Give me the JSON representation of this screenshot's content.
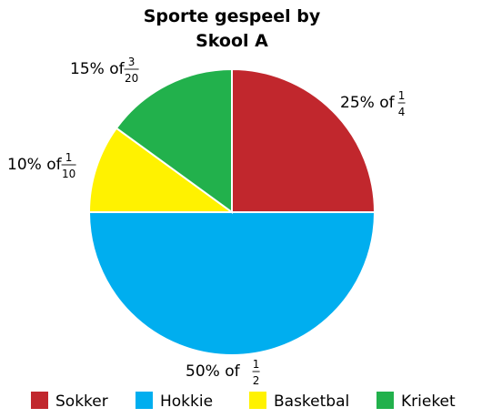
{
  "chart_data": {
    "type": "pie",
    "title": [
      "Sporte gespeel by",
      "Skool A"
    ],
    "slices": [
      {
        "name": "Sokker",
        "value": 25,
        "percent_text": "25% of",
        "fraction": {
          "num": "1",
          "den": "4"
        },
        "color": "#c1272d"
      },
      {
        "name": "Hokkie",
        "value": 50,
        "percent_text": "50% of",
        "fraction": {
          "num": "1",
          "den": "2"
        },
        "color": "#00aeef"
      },
      {
        "name": "Basketbal",
        "value": 10,
        "percent_text": "10% of",
        "fraction": {
          "num": "1",
          "den": "10"
        },
        "color": "#fff200"
      },
      {
        "name": "Krieket",
        "value": 15,
        "percent_text": "15% of",
        "fraction": {
          "num": "3",
          "den": "20"
        },
        "color": "#22b14c"
      }
    ],
    "legend_order": [
      "Sokker",
      "Hokkie",
      "Basketbal",
      "Krieket"
    ],
    "legend_position": "bottom"
  }
}
